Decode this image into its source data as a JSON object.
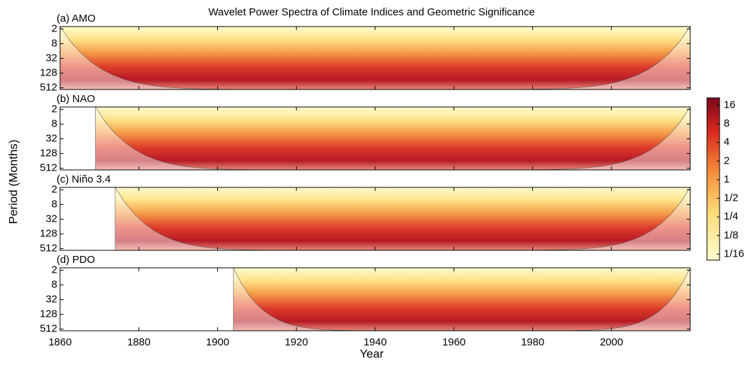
{
  "chart_data": {
    "type": "wavelet",
    "title": "Wavelet Power Spectra of Climate Indices and Geometric Significance",
    "xlabel": "Year",
    "ylabel": "Period (Months)",
    "xlim": [
      1860,
      2020
    ],
    "xticks": [
      1860,
      1880,
      1900,
      1920,
      1940,
      1960,
      1980,
      2000
    ],
    "ylim": [
      1.6,
      600
    ],
    "yticks": [
      2,
      8,
      32,
      128,
      512
    ],
    "log_y": true,
    "panels": [
      {
        "label": "(a) AMO",
        "start": 1860
      },
      {
        "label": "(b) NAO",
        "start": 1869
      },
      {
        "label": "(c) Niño 3.4",
        "start": 1874
      },
      {
        "label": "(d) PDO",
        "start": 1904
      }
    ],
    "colorbar": {
      "lim": [
        0.05,
        21
      ],
      "log": true,
      "ticks": [
        16,
        8,
        4,
        2,
        1,
        {
          "value": 0.5,
          "label": "1/2"
        },
        {
          "value": 0.25,
          "label": "1/4"
        },
        {
          "value": 0.125,
          "label": "1/8"
        },
        {
          "value": 0.0625,
          "label": "1/16"
        }
      ]
    }
  }
}
